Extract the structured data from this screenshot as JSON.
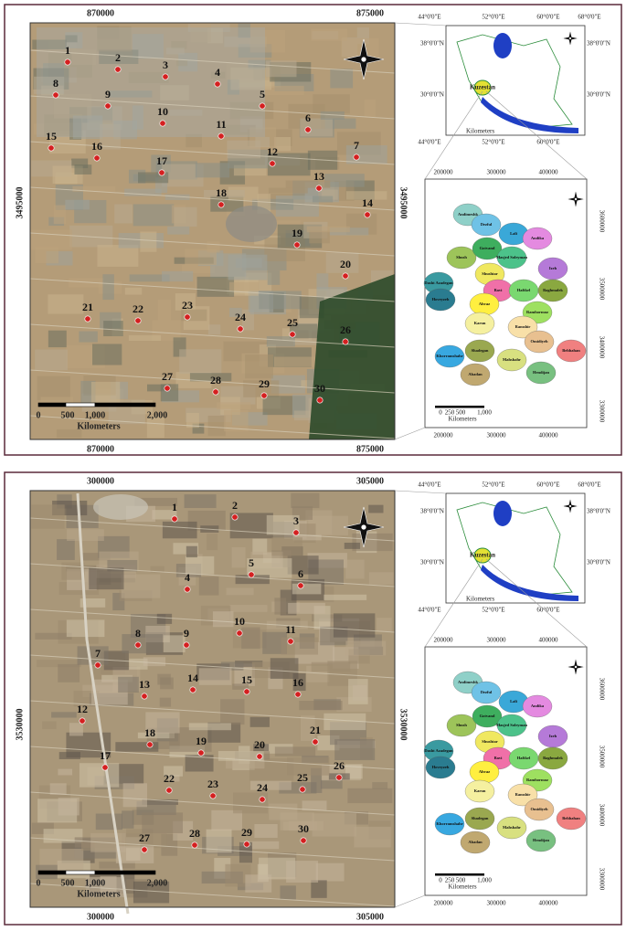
{
  "panels": [
    {
      "map": {
        "top_x_labels": [
          "870000",
          "875000"
        ],
        "left_y_label": "3495000",
        "right_y_label": "3495000",
        "bottom_x_labels": [
          "870000",
          "875000"
        ],
        "points": [
          "1",
          "2",
          "3",
          "4",
          "5",
          "6",
          "7",
          "8",
          "9",
          "10",
          "11",
          "12",
          "13",
          "14",
          "15",
          "16",
          "17",
          "18",
          "19",
          "20",
          "21",
          "22",
          "23",
          "24",
          "25",
          "26",
          "27",
          "28",
          "29",
          "30"
        ],
        "scale": {
          "ticks": [
            "0",
            "500",
            "1,000",
            "2,000"
          ],
          "unit": "Kilometers"
        }
      }
    },
    {
      "map": {
        "top_x_labels": [
          "300000",
          "305000"
        ],
        "left_y_label": "3530000",
        "right_y_label": "3530000",
        "bottom_x_labels": [
          "300000",
          "305000"
        ],
        "points": [
          "1",
          "2",
          "3",
          "4",
          "5",
          "6",
          "7",
          "8",
          "9",
          "10",
          "11",
          "12",
          "13",
          "14",
          "15",
          "16",
          "17",
          "18",
          "19",
          "20",
          "21",
          "22",
          "23",
          "24",
          "25",
          "26",
          "27",
          "28",
          "29",
          "30"
        ],
        "scale": {
          "ticks": [
            "0",
            "500",
            "1,000",
            "2,000"
          ],
          "unit": "Kilometers"
        }
      }
    }
  ],
  "location_map": {
    "top_lon": [
      "44°0'0\"E",
      "52°0'0\"E",
      "60°0'0\"E",
      "68°0'0\"E"
    ],
    "left_lat": [
      "38°0'0\"N",
      "30°0'0\"N"
    ],
    "right_lat": [
      "38°0'0\"N",
      "30°0'0\"N"
    ],
    "bottom_lon": [
      "44°0'0\"E",
      "52°0'0\"E",
      "60°0'0\"E"
    ],
    "province": "Kuzestan",
    "scale_unit": "Kilometers"
  },
  "province_map": {
    "top_x": [
      "200000",
      "300000",
      "400000"
    ],
    "right_y": [
      "3600000",
      "3500000",
      "3400000",
      "3300000"
    ],
    "bottom_x": [
      "200000",
      "300000",
      "400000"
    ],
    "counties": [
      "Andimeshk",
      "Dezful",
      "Lali",
      "Andika",
      "Shush",
      "Gotvand",
      "Masjed Soleyman",
      "Izeh",
      "Shushtar",
      "Bavi",
      "Haftkel",
      "Baghmalek",
      "Dasht Azadegan",
      "Hoveyzeh",
      "Ahvaz",
      "Karun",
      "Ramhormoz",
      "Ramshir",
      "Omidiyeh",
      "Behbahan",
      "Shadegan",
      "Khorramshahr",
      "Abadan",
      "Mahshahr",
      "Hendijan"
    ],
    "scale": {
      "ticks": [
        "0",
        "250",
        "500",
        "1,000"
      ],
      "unit": "Kilometers"
    }
  }
}
